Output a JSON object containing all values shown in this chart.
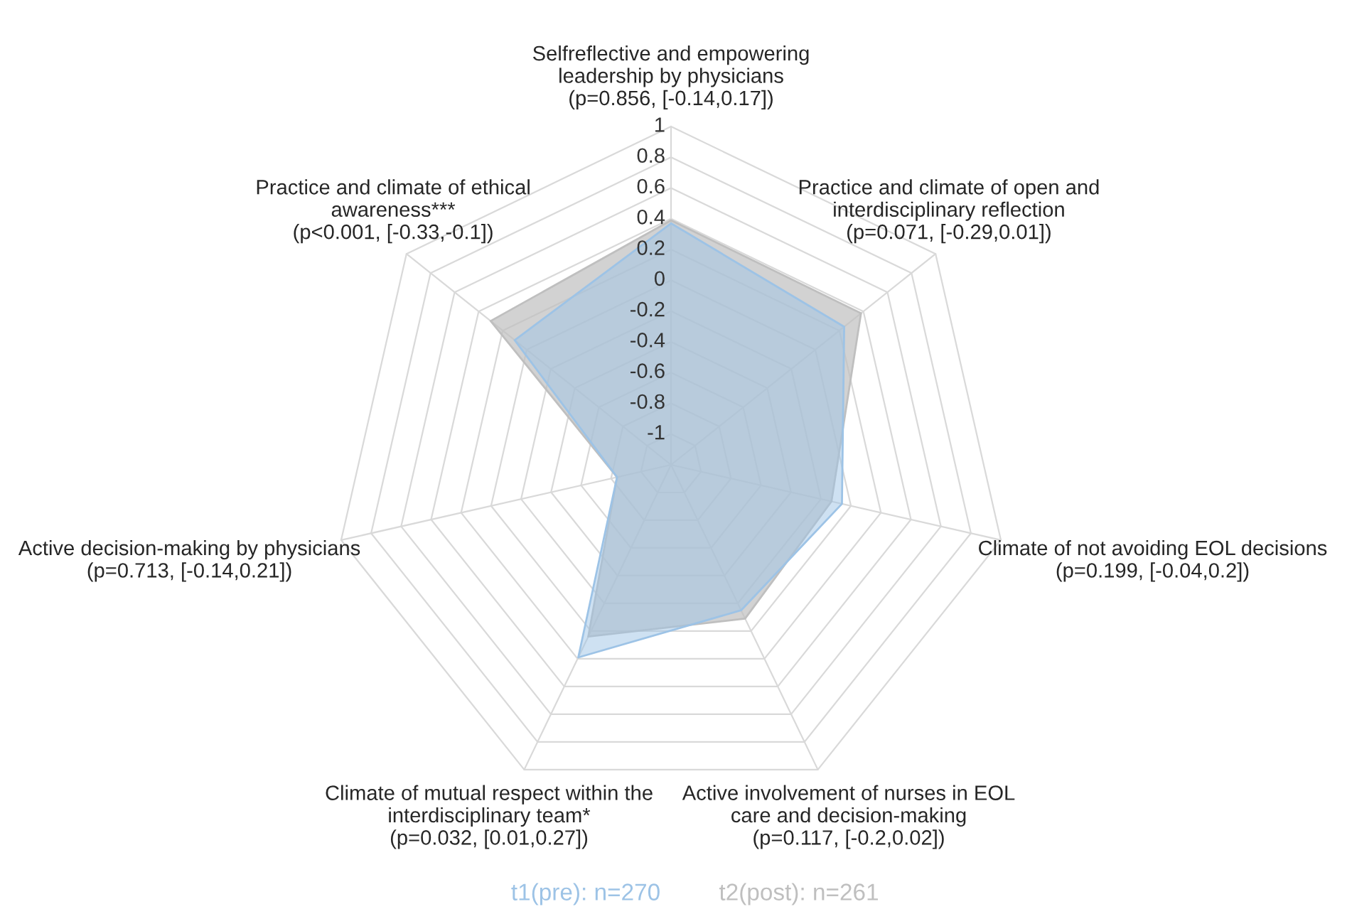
{
  "chart_data": {
    "type": "radar",
    "categories": [
      "Selfreflective and empowering\nleadership by physicians\n(p=0.856, [-0.14,0.17])",
      "Practice and climate of open and\ninterdisciplinary reflection\n(p=0.071, [-0.29,0.01])",
      "Climate of not avoiding EOL decisions\n(p=0.199, [-0.04,0.2])",
      "Active involvement of nurses in EOL\ncare and decision-making\n(p=0.117, [-0.2,0.02])",
      "Climate of mutual respect within the\ninterdisciplinary team*\n(p=0.032, [0.01,0.27])",
      "Active decision-making by physicians\n(p=0.713, [-0.14,0.21])",
      "Practice and climate of ethical\nawareness***\n(p<0.001, [-0.33,-0.1])"
    ],
    "series": [
      {
        "name": "t1(pre): n=270",
        "color": "#9dc3e6",
        "values": [
          0.37,
          0.24,
          -0.06,
          -0.15,
          0.19,
          -0.84,
          0.1
        ]
      },
      {
        "name": "t2(post): n=261",
        "color": "#bfbfbf",
        "values": [
          0.39,
          0.38,
          -0.13,
          -0.09,
          0.04,
          -0.84,
          0.3
        ]
      }
    ],
    "ylim": [
      -1.2,
      1
    ],
    "yticks": [
      -1,
      -0.8,
      -0.6,
      -0.4,
      -0.2,
      0,
      0.2,
      0.4,
      0.6,
      0.8,
      1
    ],
    "legend": "bottom"
  }
}
